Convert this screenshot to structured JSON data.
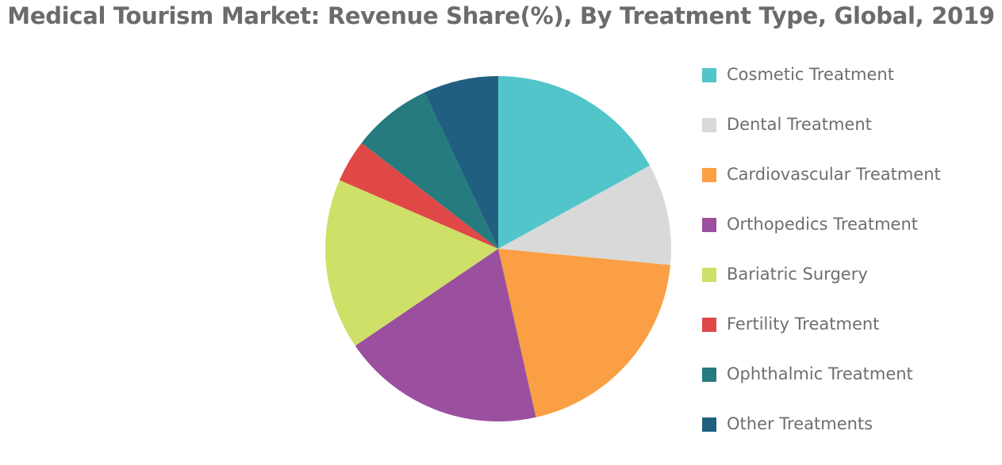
{
  "chart_data": {
    "type": "pie",
    "title": "Medical Tourism Market: Revenue Share(%), By Treatment Type, Global, 2019",
    "legend_position": "right",
    "slices": [
      {
        "label": "Cosmetic Treatment",
        "value": 17.0,
        "color": "#52c5cb"
      },
      {
        "label": "Dental Treatment",
        "value": 9.5,
        "color": "#d9d9d9"
      },
      {
        "label": "Cardiovascular Treatment",
        "value": 20.0,
        "color": "#fa9f43"
      },
      {
        "label": "Orthopedics Treatment",
        "value": 19.0,
        "color": "#9b4f9f"
      },
      {
        "label": "Bariatric Surgery",
        "value": 16.0,
        "color": "#cee067"
      },
      {
        "label": "Fertility Treatment",
        "value": 4.0,
        "color": "#e04848"
      },
      {
        "label": "Ophthalmic Treatment",
        "value": 7.5,
        "color": "#257b7e"
      },
      {
        "label": "Other Treatments",
        "value": 7.0,
        "color": "#215f80"
      }
    ]
  }
}
